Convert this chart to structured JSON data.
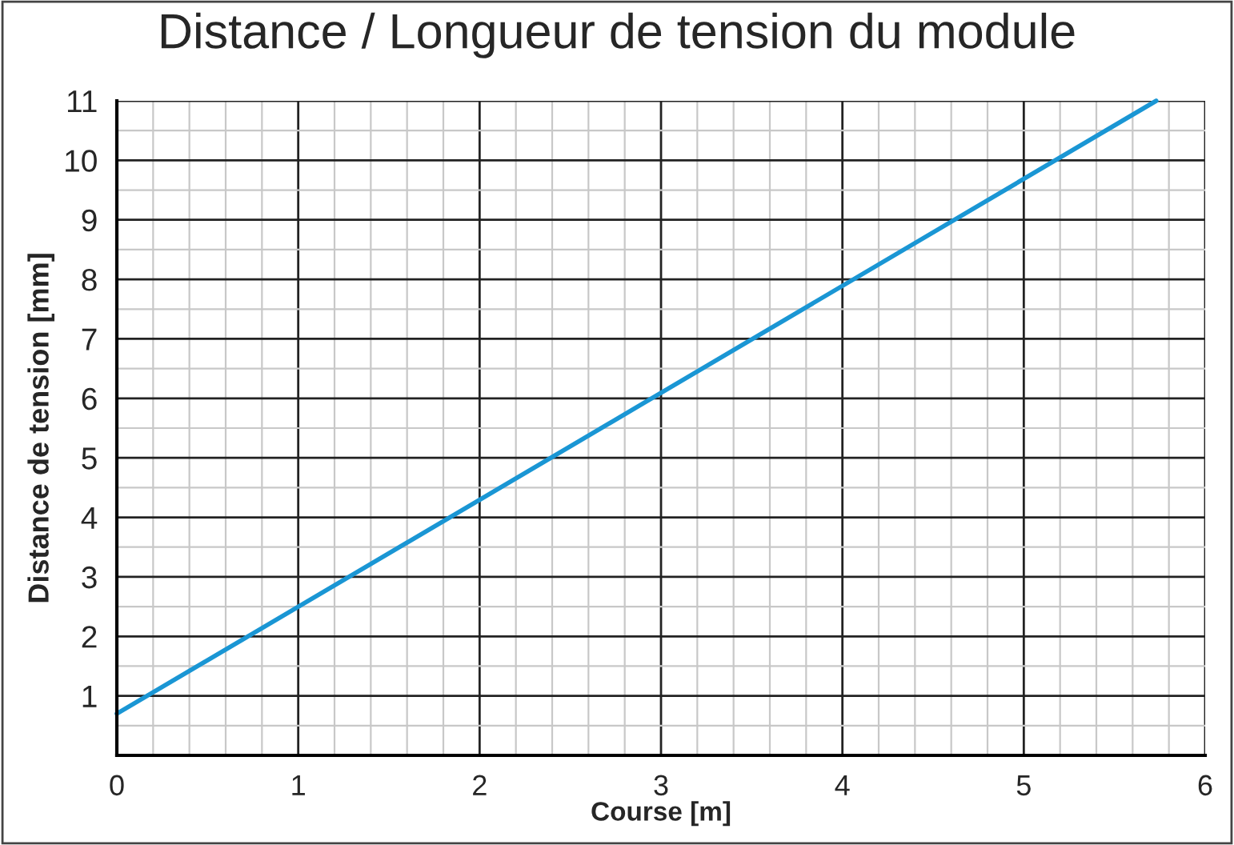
{
  "chart_data": {
    "type": "line",
    "title": "Distance / Longueur de tension du module",
    "xlabel": "Course [m]",
    "ylabel": "Distance de tension [mm]",
    "x": [
      0,
      5.73
    ],
    "series": [
      {
        "color": "#1a96d4",
        "values": [
          0.7,
          11
        ]
      }
    ],
    "xlim": [
      0,
      6
    ],
    "ylim": [
      0,
      11
    ],
    "xticks": [
      0,
      1,
      2,
      3,
      4,
      5,
      6
    ],
    "yticks": [
      1,
      2,
      3,
      4,
      5,
      6,
      7,
      8,
      9,
      10,
      11
    ],
    "grid": true,
    "marker": "none",
    "line_style": "solid"
  }
}
